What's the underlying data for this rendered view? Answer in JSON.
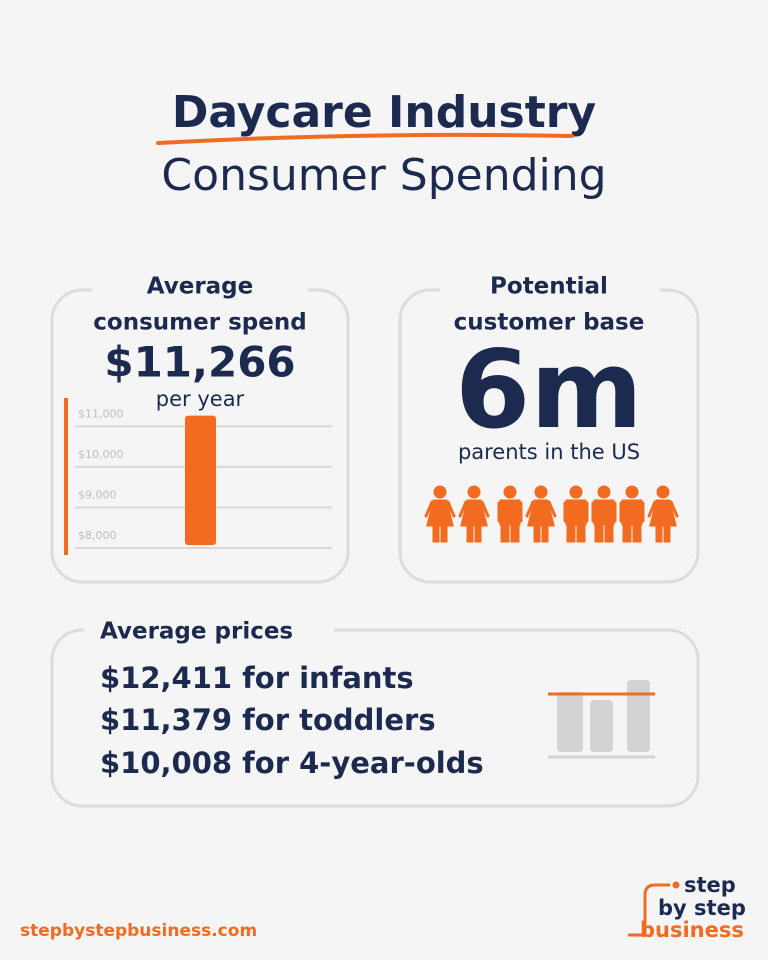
{
  "header": {
    "title": "Daycare Industry",
    "subtitle": "Consumer Spending"
  },
  "spend": {
    "heading": [
      "Average",
      "consumer spend"
    ],
    "amount": "$11,266",
    "unit": "per year",
    "chart": {
      "value": 11266,
      "ylim": [
        8000,
        11700
      ],
      "yticks": [
        {
          "value": 8000,
          "label": "$8,000"
        },
        {
          "value": 9000,
          "label": "$9,000"
        },
        {
          "value": 10000,
          "label": "$10,000"
        },
        {
          "value": 11000,
          "label": "$11,000"
        }
      ]
    }
  },
  "base": {
    "heading": [
      "Potential",
      "customer base"
    ],
    "amount": "6m",
    "unit": "parents in the US"
  },
  "prices": {
    "heading": "Average prices",
    "items": [
      "$12,411 for infants",
      "$11,379 for toddlers",
      "$10,008 for 4-year-olds"
    ]
  },
  "footer": {
    "url": "stepbystepbusiness.com",
    "logo": [
      "step",
      "by step",
      "business"
    ]
  }
}
